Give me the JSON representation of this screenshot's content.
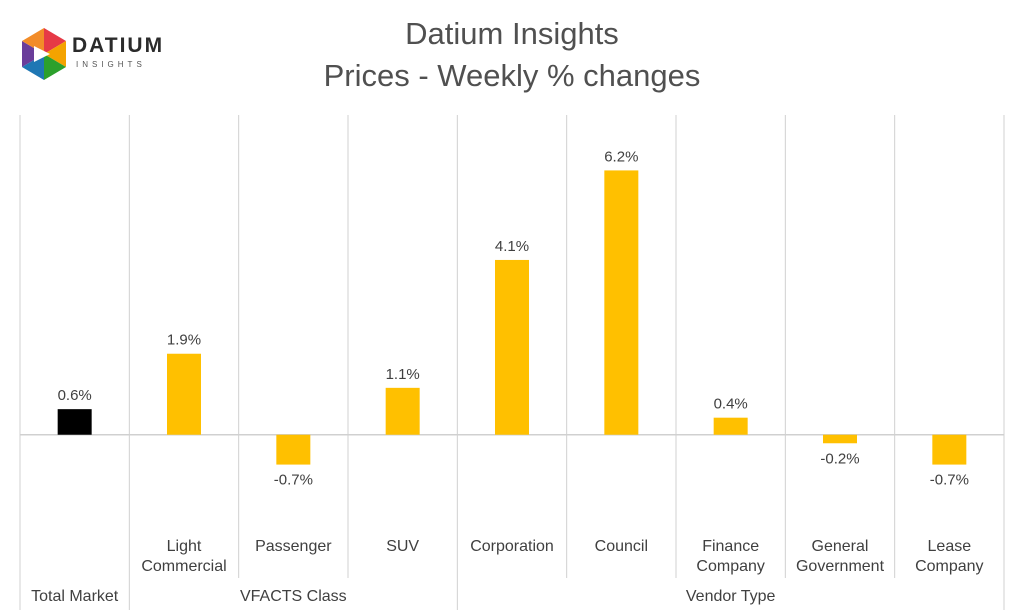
{
  "logo": {
    "word": "DATIUM",
    "sub": "INSIGHTS",
    "colors": [
      "#e63946",
      "#f4a300",
      "#2ca02c",
      "#1f77b4",
      "#6a3d9a"
    ]
  },
  "title_line1": "Datium Insights",
  "title_line2": "Prices - Weekly % changes",
  "chart_data": {
    "type": "bar",
    "categories": [
      "Total Market",
      "Light\nCommercial",
      "Passenger",
      "SUV",
      "Corporation",
      "Council",
      "Finance\nCompany",
      "General\nGovernment",
      "Lease\nCompany"
    ],
    "values": [
      0.6,
      1.9,
      -0.7,
      1.1,
      4.1,
      6.2,
      0.4,
      -0.2,
      -0.7
    ],
    "value_labels": [
      "0.6%",
      "1.9%",
      "-0.7%",
      "1.1%",
      "4.1%",
      "6.2%",
      "0.4%",
      "-0.2%",
      "-0.7%"
    ],
    "groups": [
      {
        "label": "",
        "start": 0,
        "end": 0
      },
      {
        "label": "VFACTS Class",
        "start": 1,
        "end": 3
      },
      {
        "label": "Vendor Type",
        "start": 4,
        "end": 8
      }
    ],
    "colors": {
      "highlight": "#000000",
      "default": "#ffc000",
      "gridline": "#d0d0d0"
    },
    "highlight_index": 0,
    "ylim": [
      -2,
      7.5
    ],
    "grid": "vertical-category-separators"
  }
}
